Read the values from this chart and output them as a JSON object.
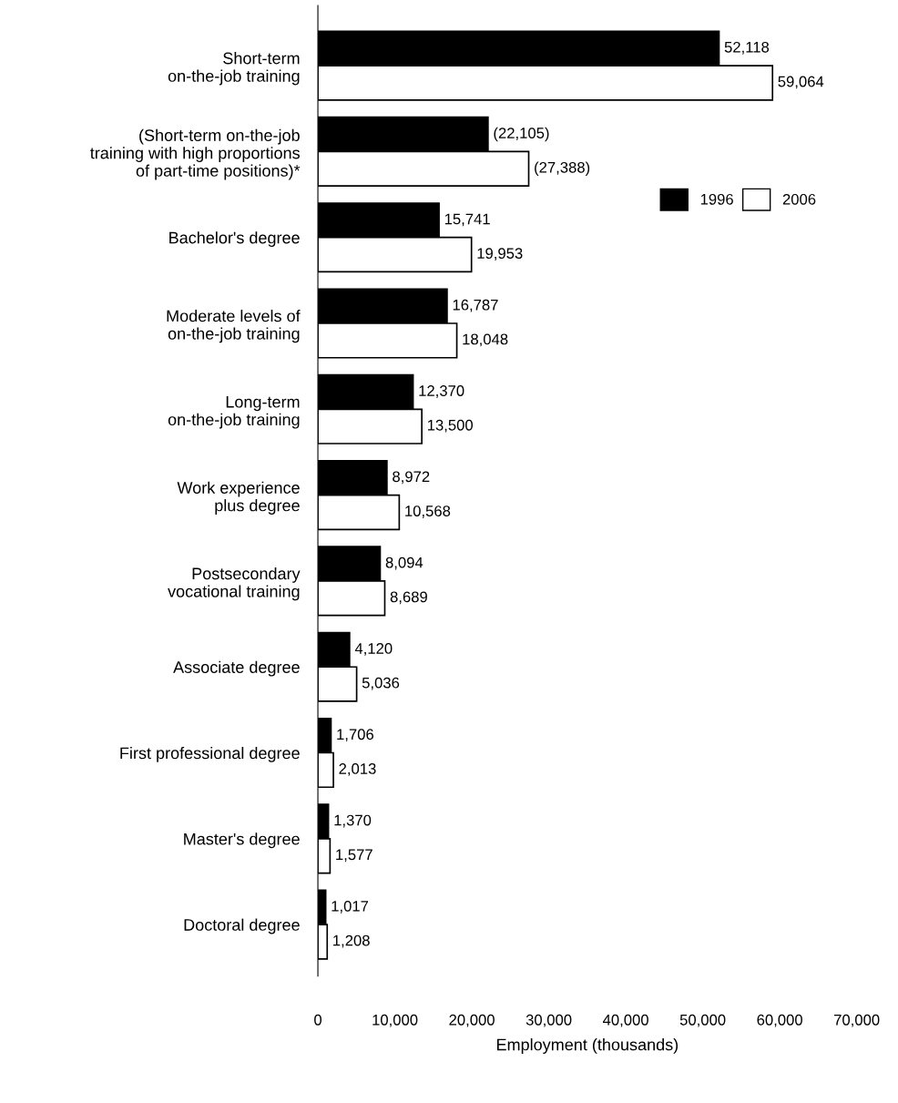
{
  "chart_data": {
    "type": "bar",
    "orientation": "horizontal",
    "xlabel": "Employment (thousands)",
    "categories": [
      "Short-term\non-the-job training",
      "(Short-term on-the-job\ntraining with high proportions\nof part-time positions)*",
      "Bachelor's degree",
      "Moderate levels of\non-the-job training",
      "Long-term\non-the-job training",
      "Work experience\nplus degree",
      "Postsecondary\nvocational training",
      "Associate degree",
      "First professional degree",
      "Master's degree",
      "Doctoral degree"
    ],
    "series": [
      {
        "name": "1996",
        "color": "#000000",
        "values": [
          52118,
          22105,
          15741,
          16787,
          12370,
          8972,
          8094,
          4120,
          1706,
          1370,
          1017
        ],
        "value_labels": [
          "52,118",
          "(22,105)",
          "15,741",
          "16,787",
          "12,370",
          "8,972",
          "8,094",
          "4,120",
          "1,706",
          "1,370",
          "1,017"
        ]
      },
      {
        "name": "2006",
        "color": "#ffffff",
        "values": [
          59064,
          27388,
          19953,
          18048,
          13500,
          10568,
          8689,
          5036,
          2013,
          1577,
          1208
        ],
        "value_labels": [
          "59,064",
          "(27,388)",
          "19,953",
          "18,048",
          "13,500",
          "10,568",
          "8,689",
          "5,036",
          "2,013",
          "1,577",
          "1,208"
        ]
      }
    ],
    "xlim": [
      0,
      70000
    ],
    "xticks": [
      {
        "value": 0,
        "label": "0"
      },
      {
        "value": 10000,
        "label": "10,000"
      },
      {
        "value": 20000,
        "label": "20,000"
      },
      {
        "value": 30000,
        "label": "30,000"
      },
      {
        "value": 40000,
        "label": "40,000"
      },
      {
        "value": 50000,
        "label": "50,000"
      },
      {
        "value": 60000,
        "label": "60,000"
      },
      {
        "value": 70000,
        "label": "70,000"
      }
    ],
    "legend": "right",
    "grid": false
  }
}
